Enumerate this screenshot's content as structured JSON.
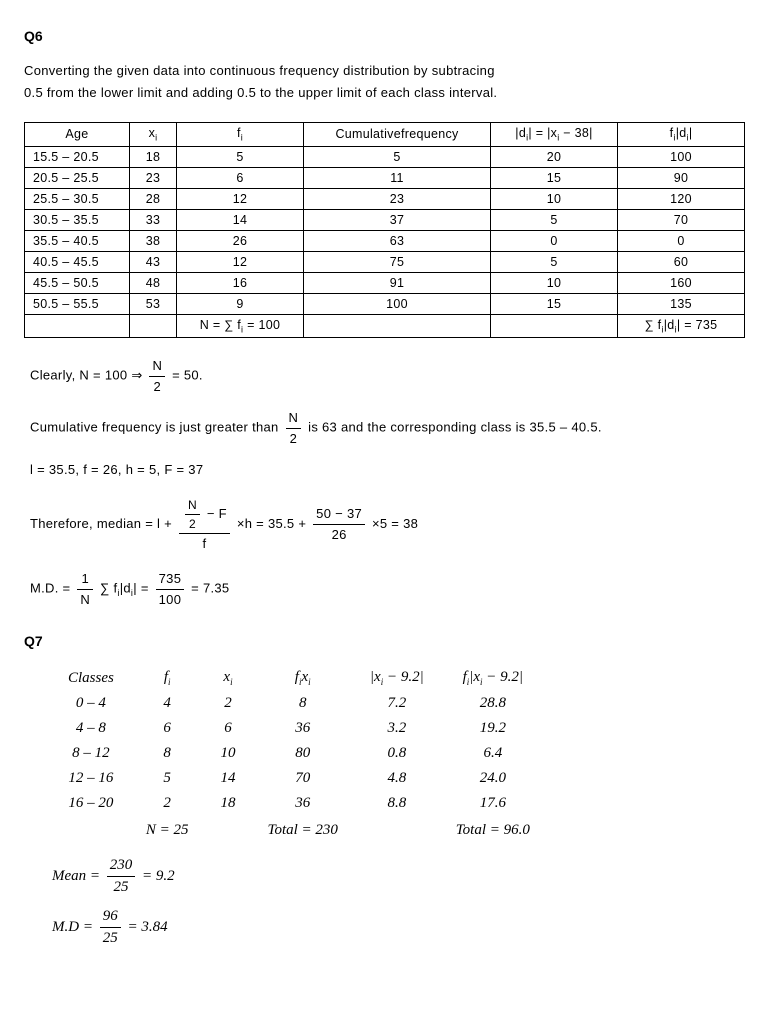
{
  "q6": {
    "heading": "Q6",
    "intro_line1": "Converting the given data into continuous frequency distribution by subtracing",
    "intro_line2": "0.5 from the lower limit and adding 0.5 to the upper limit of each class interval.",
    "headers": {
      "age": "Age",
      "xi": "x",
      "fi": "f",
      "cf": "Cumulativefrequency",
      "di_pre": "|d",
      "di_mid": "| = |x",
      "di_post": " − 38|",
      "fd_pre": "f",
      "fd_mid": "|d",
      "fd_post": "|"
    },
    "rows": [
      {
        "age": "15.5 – 20.5",
        "xi": "18",
        "fi": "5",
        "cf": "5",
        "di": "20",
        "fd": "100"
      },
      {
        "age": "20.5 – 25.5",
        "xi": "23",
        "fi": "6",
        "cf": "11",
        "di": "15",
        "fd": "90"
      },
      {
        "age": "25.5 – 30.5",
        "xi": "28",
        "fi": "12",
        "cf": "23",
        "di": "10",
        "fd": "120"
      },
      {
        "age": "30.5 – 35.5",
        "xi": "33",
        "fi": "14",
        "cf": "37",
        "di": "5",
        "fd": "70"
      },
      {
        "age": "35.5 – 40.5",
        "xi": "38",
        "fi": "26",
        "cf": "63",
        "di": "0",
        "fd": "0"
      },
      {
        "age": "40.5 – 45.5",
        "xi": "43",
        "fi": "12",
        "cf": "75",
        "di": "5",
        "fd": "60"
      },
      {
        "age": "45.5 – 50.5",
        "xi": "48",
        "fi": "16",
        "cf": "91",
        "di": "10",
        "fd": "160"
      },
      {
        "age": "50.5 – 55.5",
        "xi": "53",
        "fi": "9",
        "cf": "100",
        "di": "15",
        "fd": "135"
      }
    ],
    "totals": {
      "n_label": "N = ∑ f",
      "n_val": " = 100",
      "fd_label": "∑ f",
      "fd_mid": "|d",
      "fd_post": "| = 735"
    },
    "work": {
      "line1_pre": "Clearly, N = 100 ⇒ ",
      "line1_num": "N",
      "line1_den": "2",
      "line1_post": " = 50.",
      "line2_pre": "Cumulative frequency is just greater than ",
      "line2_num": "N",
      "line2_den": "2",
      "line2_post": " is 63 and the corresponding class is 35.5 – 40.5.",
      "line3": "l = 35.5, f = 26, h = 5, F = 37",
      "med_pre": "Therefore, median = l + ",
      "med_top_num": "N",
      "med_top_den": "2",
      "med_top_post": " − F",
      "med_bot": "f",
      "med_mid": " ×h = 35.5 + ",
      "med_num2": "50 − 37",
      "med_den2": "26",
      "med_post": " ×5 = 38",
      "md_pre": "M.D. = ",
      "md_num1": "1",
      "md_den1": "N",
      "md_mid": "∑ f",
      "md_mid2": "|d",
      "md_mid3": "| = ",
      "md_num2": "735",
      "md_den2": "100",
      "md_post": " = 7.35"
    }
  },
  "q7": {
    "heading": "Q7",
    "headers": {
      "classes": "Classes",
      "fi": "f",
      "xi": "x",
      "fixi": "f",
      "fixi_x": "x",
      "dev_pre": "|x",
      "dev_post": " − 9.2|",
      "fdev_f": "f",
      "fdev_pre": "|x",
      "fdev_post": " − 9.2|"
    },
    "rows": [
      {
        "cl": "0 – 4",
        "fi": "4",
        "xi": "2",
        "fixi": "8",
        "dev": "7.2",
        "fdev": "28.8"
      },
      {
        "cl": "4 – 8",
        "fi": "6",
        "xi": "6",
        "fixi": "36",
        "dev": "3.2",
        "fdev": "19.2"
      },
      {
        "cl": "8 – 12",
        "fi": "8",
        "xi": "10",
        "fixi": "80",
        "dev": "0.8",
        "fdev": "6.4"
      },
      {
        "cl": "12 – 16",
        "fi": "5",
        "xi": "14",
        "fixi": "70",
        "dev": "4.8",
        "fdev": "24.0"
      },
      {
        "cl": "16 – 20",
        "fi": "2",
        "xi": "18",
        "fixi": "36",
        "dev": "8.8",
        "fdev": "17.6"
      }
    ],
    "totals": {
      "n": "N = 25",
      "fixi": "Total = 230",
      "fdev": "Total = 96.0"
    },
    "work": {
      "mean_pre": "Mean = ",
      "mean_num": "230",
      "mean_den": "25",
      "mean_post": " = 9.2",
      "md_pre": "M.D = ",
      "md_num": "96",
      "md_den": "25",
      "md_post": " = 3.84"
    }
  }
}
